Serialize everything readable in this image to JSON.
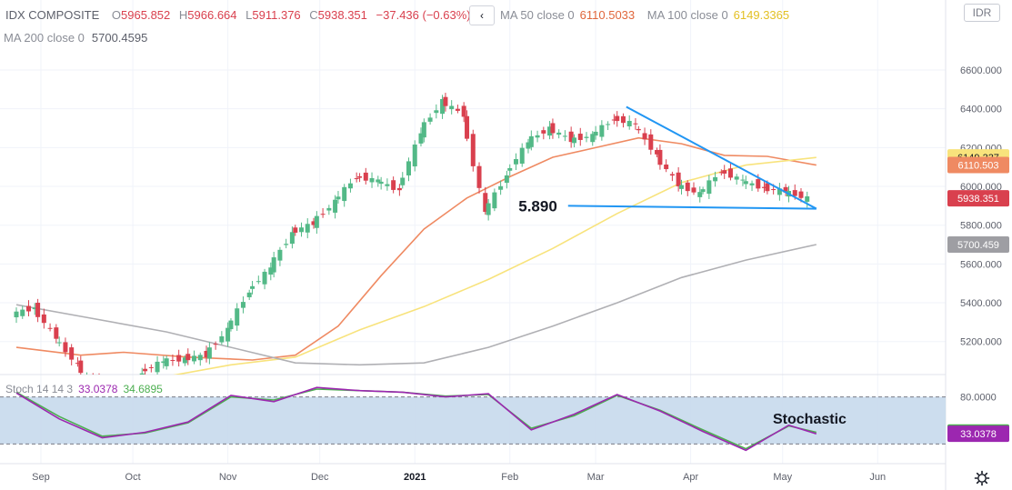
{
  "legend": {
    "symbol": "IDX COMPOSITE",
    "open_label": "O",
    "open": "5965.852",
    "high_label": "H",
    "high": "5966.664",
    "low_label": "L",
    "low": "5911.376",
    "close_label": "C",
    "close": "5938.351",
    "change": "−37.436 (−0.63%)",
    "ma50_label": "MA 50 close 0",
    "ma50": "6110.5033",
    "ma100_label": "MA 100 close 0",
    "ma100": "6149.3365",
    "ma200_label": "MA 200 close 0",
    "ma200": "5700.4595"
  },
  "stoch_legend": {
    "label": "Stoch 14 14 3",
    "k": "33.0378",
    "d": "34.6895"
  },
  "currency": "IDR",
  "icons": {
    "collapse": "chevron-left-icon",
    "settings": "gear-icon"
  },
  "colors": {
    "up": "#53b987",
    "down": "#d9404e",
    "ma50": "#ef8a62",
    "ma100": "#f8e37c",
    "ma200": "#b0b0b4",
    "trendline": "#2196f3",
    "k": "#9c27b0",
    "d": "#4caf50",
    "stoch_band": "#c6d9ec"
  },
  "chart_data": [
    {
      "type": "line",
      "title": "IDX COMPOSITE",
      "x_ticks": [
        "Sep",
        "Oct",
        "Nov",
        "Dec",
        "2021",
        "Feb",
        "Mar",
        "Apr",
        "May",
        "Jun"
      ],
      "y_ticks": [
        5200,
        5400,
        5600,
        5800,
        6000,
        6200,
        6400,
        6600
      ],
      "ylim": [
        5030,
        6750
      ],
      "price_labels": [
        {
          "text": "6149.337",
          "value": 6149.337,
          "color": "#f8e37c",
          "series": "MA 100"
        },
        {
          "text": "6110.503",
          "value": 6110.503,
          "color": "#ef8a62",
          "series": "MA 50"
        },
        {
          "text": "5938.351",
          "value": 5938.351,
          "color": "#d9404e",
          "series": "Close"
        },
        {
          "text": "5700.459",
          "value": 5700.459,
          "color": "#9e9ea3",
          "series": "MA 200"
        }
      ],
      "annotations": [
        {
          "text": "5.890",
          "value": 5890
        }
      ],
      "trend_lines": [
        {
          "name": "upper",
          "points": [
            [
              "2021-03-11",
              6410
            ],
            [
              "2021-05-12",
              5885
            ]
          ]
        },
        {
          "name": "lower",
          "points": [
            [
              "2021-02-20",
              5900
            ],
            [
              "2021-05-12",
              5885
            ]
          ]
        }
      ],
      "close_series": [
        [
          "2020-08-24",
          5340
        ],
        [
          "2020-08-31",
          5375
        ],
        [
          "2020-09-07",
          5220
        ],
        [
          "2020-09-14",
          5080
        ],
        [
          "2020-09-21",
          4950
        ],
        [
          "2020-09-28",
          4920
        ],
        [
          "2020-10-05",
          5040
        ],
        [
          "2020-10-12",
          5100
        ],
        [
          "2020-10-19",
          5110
        ],
        [
          "2020-10-26",
          5130
        ],
        [
          "2020-11-02",
          5260
        ],
        [
          "2020-11-09",
          5460
        ],
        [
          "2020-11-16",
          5580
        ],
        [
          "2020-11-23",
          5760
        ],
        [
          "2020-11-30",
          5810
        ],
        [
          "2020-12-07",
          5920
        ],
        [
          "2020-12-14",
          6050
        ],
        [
          "2020-12-21",
          6030
        ],
        [
          "2020-12-28",
          5980
        ],
        [
          "2021-01-04",
          6280
        ],
        [
          "2021-01-11",
          6440
        ],
        [
          "2021-01-18",
          6370
        ],
        [
          "2021-01-25",
          5860
        ],
        [
          "2021-02-01",
          6060
        ],
        [
          "2021-02-08",
          6230
        ],
        [
          "2021-02-15",
          6300
        ],
        [
          "2021-02-22",
          6240
        ],
        [
          "2021-03-01",
          6260
        ],
        [
          "2021-03-08",
          6350
        ],
        [
          "2021-03-15",
          6320
        ],
        [
          "2021-03-22",
          6160
        ],
        [
          "2021-03-29",
          6010
        ],
        [
          "2021-04-05",
          5960
        ],
        [
          "2021-04-12",
          6080
        ],
        [
          "2021-04-19",
          6030
        ],
        [
          "2021-04-26",
          5990
        ],
        [
          "2021-05-03",
          5975
        ],
        [
          "2021-05-10",
          5938
        ]
      ],
      "series": [
        {
          "name": "MA 50 close 0",
          "color": "#ef8a62",
          "values": [
            [
              "2020-08-24",
              5170
            ],
            [
              "2020-09-14",
              5130
            ],
            [
              "2020-09-28",
              5145
            ],
            [
              "2020-10-19",
              5120
            ],
            [
              "2020-11-09",
              5105
            ],
            [
              "2020-11-23",
              5130
            ],
            [
              "2020-12-07",
              5280
            ],
            [
              "2020-12-21",
              5540
            ],
            [
              "2021-01-04",
              5780
            ],
            [
              "2021-01-18",
              5940
            ],
            [
              "2021-02-01",
              6050
            ],
            [
              "2021-02-15",
              6150
            ],
            [
              "2021-03-01",
              6200
            ],
            [
              "2021-03-15",
              6250
            ],
            [
              "2021-03-29",
              6220
            ],
            [
              "2021-04-12",
              6160
            ],
            [
              "2021-04-26",
              6155
            ],
            [
              "2021-05-12",
              6110
            ]
          ]
        },
        {
          "name": "MA 100 close 0",
          "color": "#f8e37c",
          "values": [
            [
              "2020-10-12",
              5020
            ],
            [
              "2020-11-02",
              5080
            ],
            [
              "2020-11-23",
              5120
            ],
            [
              "2020-12-14",
              5260
            ],
            [
              "2021-01-04",
              5380
            ],
            [
              "2021-01-25",
              5520
            ],
            [
              "2021-02-15",
              5680
            ],
            [
              "2021-03-08",
              5860
            ],
            [
              "2021-03-29",
              6020
            ],
            [
              "2021-04-19",
              6110
            ],
            [
              "2021-05-12",
              6149
            ]
          ]
        },
        {
          "name": "MA 200 close 0",
          "color": "#b0b0b4",
          "values": [
            [
              "2020-08-24",
              5390
            ],
            [
              "2020-09-14",
              5330
            ],
            [
              "2020-10-12",
              5250
            ],
            [
              "2020-11-02",
              5170
            ],
            [
              "2020-11-23",
              5090
            ],
            [
              "2020-12-14",
              5080
            ],
            [
              "2021-01-04",
              5090
            ],
            [
              "2021-01-25",
              5170
            ],
            [
              "2021-02-15",
              5280
            ],
            [
              "2021-03-08",
              5400
            ],
            [
              "2021-03-29",
              5530
            ],
            [
              "2021-04-19",
              5620
            ],
            [
              "2021-05-12",
              5700
            ]
          ]
        }
      ]
    },
    {
      "type": "line",
      "title": "Stochastic",
      "ylim": [
        -5,
        105
      ],
      "y_ticks": [
        80,
        20
      ],
      "y_tick_labels": [
        "80.0000"
      ],
      "band": [
        20,
        80
      ],
      "price_labels": [
        {
          "text": "34.6895",
          "value": 34.6895,
          "color": "#4caf50",
          "series": "%D"
        },
        {
          "text": "33.0378",
          "value": 33.0378,
          "color": "#9c27b0",
          "series": "%K"
        }
      ],
      "series": [
        {
          "name": "%K",
          "color": "#9c27b0",
          "values": [
            [
              "2020-08-24",
              85
            ],
            [
              "2020-09-07",
              52
            ],
            [
              "2020-09-21",
              28
            ],
            [
              "2020-10-05",
              35
            ],
            [
              "2020-10-19",
              48
            ],
            [
              "2020-11-02",
              82
            ],
            [
              "2020-11-16",
              74
            ],
            [
              "2020-11-30",
              92
            ],
            [
              "2020-12-14",
              88
            ],
            [
              "2020-12-28",
              86
            ],
            [
              "2021-01-11",
              80
            ],
            [
              "2021-01-25",
              84
            ],
            [
              "2021-02-08",
              38
            ],
            [
              "2021-02-22",
              58
            ],
            [
              "2021-03-08",
              83
            ],
            [
              "2021-03-22",
              62
            ],
            [
              "2021-04-05",
              36
            ],
            [
              "2021-04-19",
              12
            ],
            [
              "2021-05-03",
              44
            ],
            [
              "2021-05-12",
              33
            ]
          ]
        },
        {
          "name": "%D",
          "color": "#4caf50",
          "values": [
            [
              "2020-08-24",
              86
            ],
            [
              "2020-09-07",
              55
            ],
            [
              "2020-09-21",
              30
            ],
            [
              "2020-10-05",
              34
            ],
            [
              "2020-10-19",
              47
            ],
            [
              "2020-11-02",
              80
            ],
            [
              "2020-11-16",
              76
            ],
            [
              "2020-11-30",
              90
            ],
            [
              "2020-12-14",
              88
            ],
            [
              "2020-12-28",
              86
            ],
            [
              "2021-01-11",
              81
            ],
            [
              "2021-01-25",
              83
            ],
            [
              "2021-02-08",
              40
            ],
            [
              "2021-02-22",
              56
            ],
            [
              "2021-03-08",
              82
            ],
            [
              "2021-03-22",
              63
            ],
            [
              "2021-04-05",
              38
            ],
            [
              "2021-04-19",
              14
            ],
            [
              "2021-05-03",
              43
            ],
            [
              "2021-05-12",
              35
            ]
          ]
        }
      ],
      "annotations": [
        {
          "text": "Stochastic"
        }
      ]
    }
  ]
}
